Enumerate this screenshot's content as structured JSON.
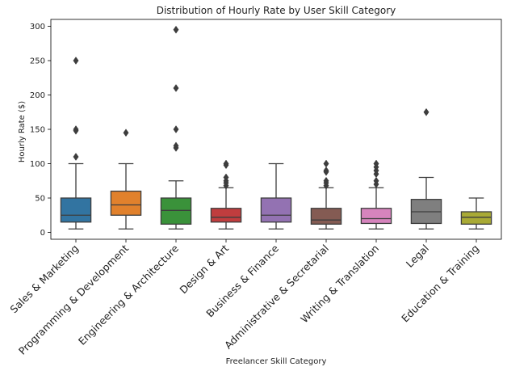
{
  "chart_data": {
    "type": "box",
    "title": "Distribution of Hourly Rate by User Skill Category",
    "xlabel": "Freelancer Skill Category",
    "ylabel": "Hourly Rate ($)",
    "ylim": [
      -10,
      310
    ],
    "yticks": [
      0,
      50,
      100,
      150,
      200,
      250,
      300
    ],
    "grid": false,
    "categories": [
      "Sales & Marketing",
      "Programming & Development",
      "Engineering & Architecture",
      "Design & Art",
      "Business & Finance",
      "Administrative & Secretarial",
      "Writing & Translation",
      "Legal",
      "Education & Training"
    ],
    "boxes": [
      {
        "category": "Sales & Marketing",
        "min": 5,
        "q1": 15,
        "median": 25,
        "q3": 50,
        "max": 100,
        "outliers": [
          110,
          148,
          150,
          250
        ],
        "color": "#3274a1"
      },
      {
        "category": "Programming & Development",
        "min": 5,
        "q1": 25,
        "median": 40,
        "q3": 60,
        "max": 100,
        "outliers": [
          145
        ],
        "color": "#e1812c"
      },
      {
        "category": "Engineering & Architecture",
        "min": 5,
        "q1": 12,
        "median": 32,
        "q3": 50,
        "max": 75,
        "outliers": [
          123,
          126,
          150,
          210,
          295
        ],
        "color": "#3a923a"
      },
      {
        "category": "Design & Art",
        "min": 5,
        "q1": 15,
        "median": 22,
        "q3": 35,
        "max": 65,
        "outliers": [
          68,
          72,
          75,
          80,
          98,
          100
        ],
        "color": "#c03d3e"
      },
      {
        "category": "Business & Finance",
        "min": 5,
        "q1": 15,
        "median": 25,
        "q3": 50,
        "max": 100,
        "outliers": [],
        "color": "#9372b2"
      },
      {
        "category": "Administrative & Secretarial",
        "min": 5,
        "q1": 12,
        "median": 18,
        "q3": 35,
        "max": 65,
        "outliers": [
          68,
          72,
          75,
          88,
          90,
          100
        ],
        "color": "#845b53"
      },
      {
        "category": "Writing & Translation",
        "min": 5,
        "q1": 13,
        "median": 20,
        "q3": 35,
        "max": 65,
        "outliers": [
          70,
          75,
          85,
          90,
          95,
          100
        ],
        "color": "#d684bd"
      },
      {
        "category": "Legal",
        "min": 5,
        "q1": 13,
        "median": 30,
        "q3": 48,
        "max": 80,
        "outliers": [
          175
        ],
        "color": "#7f7f7f"
      },
      {
        "category": "Education & Training",
        "min": 5,
        "q1": 12,
        "median": 22,
        "q3": 30,
        "max": 50,
        "outliers": [],
        "color": "#a9aa35"
      }
    ]
  }
}
